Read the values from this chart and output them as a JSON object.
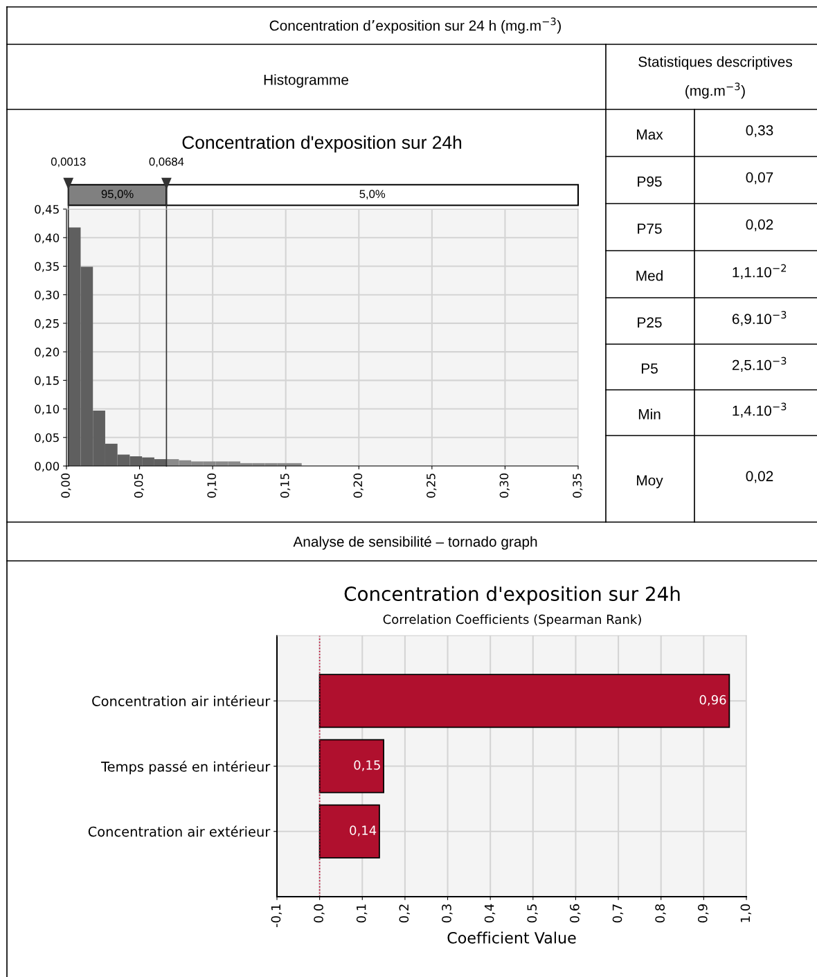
{
  "chart_data": [
    {
      "type": "histogram",
      "title": "Concentration d'exposition sur 24h",
      "annotations": [
        "Concentration d’exposition sur 24 h (mg.m$^{−3}$)",
        "Histogramme",
        "95,0%",
        "5,0%"
      ],
      "bins": [
        0.0013,
        0.0097,
        0.0181,
        0.0265,
        0.0349,
        0.0433,
        0.0517,
        0.0601,
        0.0685,
        0.0769,
        0.0853,
        0.0937,
        0.1021,
        0.1105,
        0.1189,
        0.1273,
        0.1357,
        0.1441,
        0.1525,
        0.1609
      ],
      "values": [
        0.418,
        0.349,
        0.097,
        0.039,
        0.02,
        0.017,
        0.015,
        0.012,
        0.012,
        0.01,
        0.008,
        0.008,
        0.008,
        0.008,
        0.005,
        0.005,
        0.005,
        0.005,
        0.005
      ],
      "colors": [
        "#5f5f5f",
        "#5f5f5f",
        "#5f5f5f",
        "#5f5f5f",
        "#5f5f5f",
        "#5f5f5f",
        "#5f5f5f",
        "#5f5f5f",
        "#8a8a8a",
        "#8a8a8a",
        "#8a8a8a",
        "#8a8a8a",
        "#8a8a8a",
        "#8a8a8a",
        "#8a8a8a",
        "#8a8a8a",
        "#8a8a8a",
        "#8a8a8a",
        "#8a8a8a"
      ],
      "xlim": [
        0,
        0.35
      ],
      "xticks": [
        {
          "value": 0,
          "label": "0,00"
        },
        {
          "value": 0.05,
          "label": "0,05"
        },
        {
          "value": 0.1,
          "label": "0,10"
        },
        {
          "value": 0.15,
          "label": "0,15"
        },
        {
          "value": 0.2,
          "label": "0,20"
        },
        {
          "value": 0.25,
          "label": "0,25"
        },
        {
          "value": 0.3,
          "label": "0,30"
        },
        {
          "value": 0.35,
          "label": "0,35"
        }
      ],
      "ylim": [
        0,
        0.45
      ],
      "yticks": [
        {
          "value": 0,
          "label": "0,00"
        },
        {
          "value": 0.05,
          "label": "0,05"
        },
        {
          "value": 0.1,
          "label": "0,10"
        },
        {
          "value": 0.15,
          "label": "0,15"
        },
        {
          "value": 0.2,
          "label": "0,20"
        },
        {
          "value": 0.25,
          "label": "0,25"
        },
        {
          "value": 0.3,
          "label": "0,30"
        },
        {
          "value": 0.35,
          "label": "0,35"
        },
        {
          "value": 0.4,
          "label": "0,40"
        },
        {
          "value": 0.45,
          "label": "0,45"
        }
      ],
      "ref_lines": [
        {
          "axis": "x",
          "value": 0.0013,
          "label": "0,0013",
          "color": "#333333"
        },
        {
          "axis": "x",
          "value": 0.0684,
          "label": "0,0684",
          "color": "#333333"
        }
      ],
      "grid": true
    },
    {
      "type": "other",
      "title": "Statistiques descriptives (mg.m$^{−3}$)",
      "categories": [
        "Max",
        "P95",
        "P75",
        "Med",
        "P25",
        "P5",
        "Min",
        "Moy"
      ],
      "value_labels": [
        "0,33",
        "0,07",
        "0,02",
        "1,1.10$^{−2}$",
        "6,9.10$^{−3}$",
        "2,5.10$^{−3}$",
        "1,4.10$^{−3}$",
        "0,02"
      ]
    },
    {
      "type": "bar",
      "orientation": "horizontal",
      "title": "Concentration d'exposition sur 24h",
      "subtitle": "Correlation Coefficients (Spearman Rank)",
      "annotations": [
        "Analyse de sensibilité – tornado graph"
      ],
      "xlabel": "Coefficient Value",
      "categories": [
        "Concentration air intérieur",
        "Temps passé en intérieur",
        "Concentration air extérieur"
      ],
      "values": [
        0.96,
        0.15,
        0.14
      ],
      "value_labels": [
        "0,96",
        "0,15",
        "0,14"
      ],
      "color": "#b0102e",
      "xlim": [
        -0.1,
        1.0
      ],
      "xticks": [
        {
          "value": -0.1,
          "label": "-0,1"
        },
        {
          "value": 0,
          "label": "0,0"
        },
        {
          "value": 0.1,
          "label": "0,1"
        },
        {
          "value": 0.2,
          "label": "0,2"
        },
        {
          "value": 0.3,
          "label": "0,3"
        },
        {
          "value": 0.4,
          "label": "0,4"
        },
        {
          "value": 0.5,
          "label": "0,5"
        },
        {
          "value": 0.6,
          "label": "0,6"
        },
        {
          "value": 0.7,
          "label": "0,7"
        },
        {
          "value": 0.8,
          "label": "0,8"
        },
        {
          "value": 0.9,
          "label": "0,9"
        },
        {
          "value": 1.0,
          "label": "1,0"
        }
      ],
      "ref_lines": [
        {
          "axis": "x",
          "value": 0,
          "color": "#c0002a",
          "line_style": "dotted"
        }
      ],
      "grid": true
    }
  ]
}
